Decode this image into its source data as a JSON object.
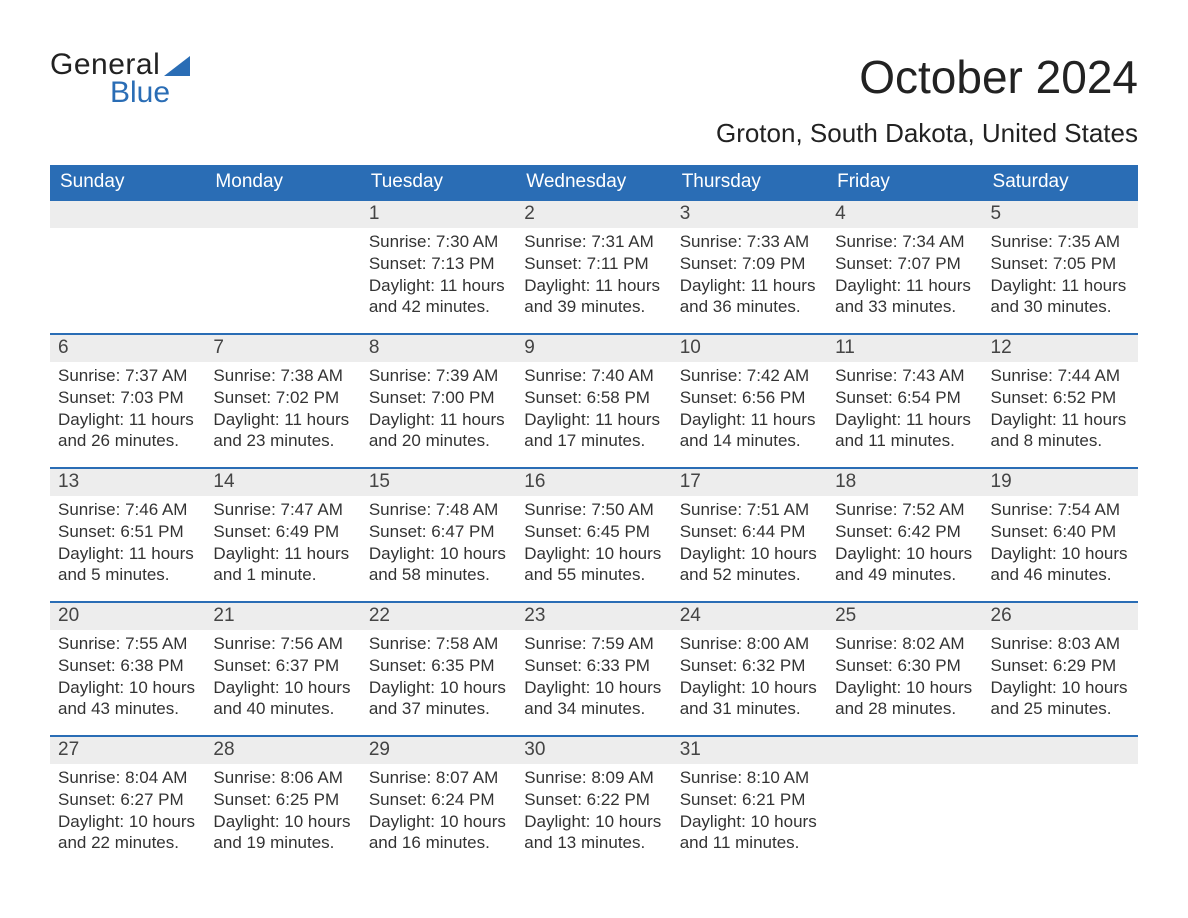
{
  "brand": {
    "word1": "General",
    "word2": "Blue",
    "accent_color": "#2a6db5"
  },
  "title": "October 2024",
  "location": "Groton, South Dakota, United States",
  "colors": {
    "header_bg": "#2a6db5",
    "header_text": "#ffffff",
    "daynum_bg": "#ededed",
    "daynum_border": "#2a6db5",
    "body_text": "#333333",
    "page_bg": "#ffffff"
  },
  "fonts": {
    "title_size_pt": 34,
    "location_size_pt": 20,
    "header_size_pt": 14,
    "daynum_size_pt": 14,
    "body_size_pt": 13
  },
  "day_headers": [
    "Sunday",
    "Monday",
    "Tuesday",
    "Wednesday",
    "Thursday",
    "Friday",
    "Saturday"
  ],
  "weeks": [
    [
      null,
      null,
      {
        "n": "1",
        "sunrise": "7:30 AM",
        "sunset": "7:13 PM",
        "daylight": "11 hours and 42 minutes."
      },
      {
        "n": "2",
        "sunrise": "7:31 AM",
        "sunset": "7:11 PM",
        "daylight": "11 hours and 39 minutes."
      },
      {
        "n": "3",
        "sunrise": "7:33 AM",
        "sunset": "7:09 PM",
        "daylight": "11 hours and 36 minutes."
      },
      {
        "n": "4",
        "sunrise": "7:34 AM",
        "sunset": "7:07 PM",
        "daylight": "11 hours and 33 minutes."
      },
      {
        "n": "5",
        "sunrise": "7:35 AM",
        "sunset": "7:05 PM",
        "daylight": "11 hours and 30 minutes."
      }
    ],
    [
      {
        "n": "6",
        "sunrise": "7:37 AM",
        "sunset": "7:03 PM",
        "daylight": "11 hours and 26 minutes."
      },
      {
        "n": "7",
        "sunrise": "7:38 AM",
        "sunset": "7:02 PM",
        "daylight": "11 hours and 23 minutes."
      },
      {
        "n": "8",
        "sunrise": "7:39 AM",
        "sunset": "7:00 PM",
        "daylight": "11 hours and 20 minutes."
      },
      {
        "n": "9",
        "sunrise": "7:40 AM",
        "sunset": "6:58 PM",
        "daylight": "11 hours and 17 minutes."
      },
      {
        "n": "10",
        "sunrise": "7:42 AM",
        "sunset": "6:56 PM",
        "daylight": "11 hours and 14 minutes."
      },
      {
        "n": "11",
        "sunrise": "7:43 AM",
        "sunset": "6:54 PM",
        "daylight": "11 hours and 11 minutes."
      },
      {
        "n": "12",
        "sunrise": "7:44 AM",
        "sunset": "6:52 PM",
        "daylight": "11 hours and 8 minutes."
      }
    ],
    [
      {
        "n": "13",
        "sunrise": "7:46 AM",
        "sunset": "6:51 PM",
        "daylight": "11 hours and 5 minutes."
      },
      {
        "n": "14",
        "sunrise": "7:47 AM",
        "sunset": "6:49 PM",
        "daylight": "11 hours and 1 minute."
      },
      {
        "n": "15",
        "sunrise": "7:48 AM",
        "sunset": "6:47 PM",
        "daylight": "10 hours and 58 minutes."
      },
      {
        "n": "16",
        "sunrise": "7:50 AM",
        "sunset": "6:45 PM",
        "daylight": "10 hours and 55 minutes."
      },
      {
        "n": "17",
        "sunrise": "7:51 AM",
        "sunset": "6:44 PM",
        "daylight": "10 hours and 52 minutes."
      },
      {
        "n": "18",
        "sunrise": "7:52 AM",
        "sunset": "6:42 PM",
        "daylight": "10 hours and 49 minutes."
      },
      {
        "n": "19",
        "sunrise": "7:54 AM",
        "sunset": "6:40 PM",
        "daylight": "10 hours and 46 minutes."
      }
    ],
    [
      {
        "n": "20",
        "sunrise": "7:55 AM",
        "sunset": "6:38 PM",
        "daylight": "10 hours and 43 minutes."
      },
      {
        "n": "21",
        "sunrise": "7:56 AM",
        "sunset": "6:37 PM",
        "daylight": "10 hours and 40 minutes."
      },
      {
        "n": "22",
        "sunrise": "7:58 AM",
        "sunset": "6:35 PM",
        "daylight": "10 hours and 37 minutes."
      },
      {
        "n": "23",
        "sunrise": "7:59 AM",
        "sunset": "6:33 PM",
        "daylight": "10 hours and 34 minutes."
      },
      {
        "n": "24",
        "sunrise": "8:00 AM",
        "sunset": "6:32 PM",
        "daylight": "10 hours and 31 minutes."
      },
      {
        "n": "25",
        "sunrise": "8:02 AM",
        "sunset": "6:30 PM",
        "daylight": "10 hours and 28 minutes."
      },
      {
        "n": "26",
        "sunrise": "8:03 AM",
        "sunset": "6:29 PM",
        "daylight": "10 hours and 25 minutes."
      }
    ],
    [
      {
        "n": "27",
        "sunrise": "8:04 AM",
        "sunset": "6:27 PM",
        "daylight": "10 hours and 22 minutes."
      },
      {
        "n": "28",
        "sunrise": "8:06 AM",
        "sunset": "6:25 PM",
        "daylight": "10 hours and 19 minutes."
      },
      {
        "n": "29",
        "sunrise": "8:07 AM",
        "sunset": "6:24 PM",
        "daylight": "10 hours and 16 minutes."
      },
      {
        "n": "30",
        "sunrise": "8:09 AM",
        "sunset": "6:22 PM",
        "daylight": "10 hours and 13 minutes."
      },
      {
        "n": "31",
        "sunrise": "8:10 AM",
        "sunset": "6:21 PM",
        "daylight": "10 hours and 11 minutes."
      },
      null,
      null
    ]
  ],
  "labels": {
    "sunrise": "Sunrise: ",
    "sunset": "Sunset: ",
    "daylight": "Daylight: "
  }
}
